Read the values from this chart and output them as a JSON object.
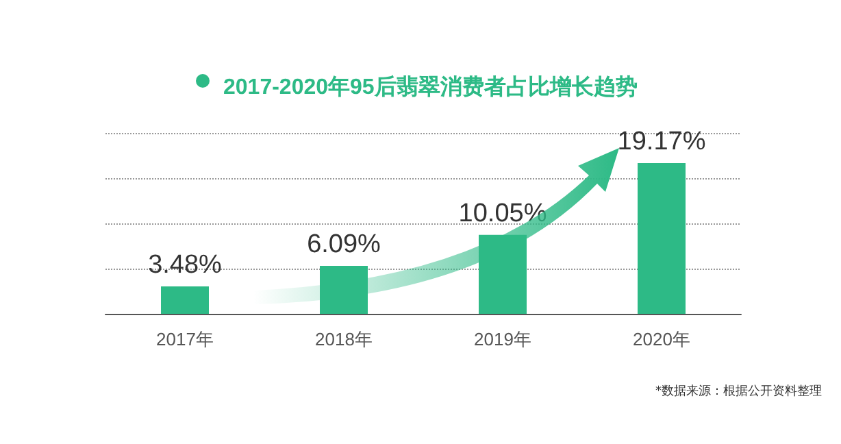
{
  "chart_data": {
    "type": "bar",
    "title": "2017-2020年95后翡翠消费者占比增长趋势",
    "categories": [
      "2017年",
      "2018年",
      "2019年",
      "2020年"
    ],
    "values": [
      3.48,
      6.09,
      10.05,
      19.17
    ],
    "value_labels": [
      "3.48%",
      "6.09%",
      "10.05%",
      "19.17%"
    ],
    "color": "#2dba86",
    "ylim": [
      0,
      23
    ],
    "yticks": [
      {
        "value": 0,
        "label": null
      },
      {
        "value": 5.75,
        "label": null
      },
      {
        "value": 11.5,
        "label": null
      },
      {
        "value": 17.25,
        "label": null
      },
      {
        "value": 23,
        "label": null
      }
    ],
    "grid": "y",
    "tick_labels": "x",
    "annotations": [
      "*数据来源：根据公开资料整理"
    ]
  }
}
